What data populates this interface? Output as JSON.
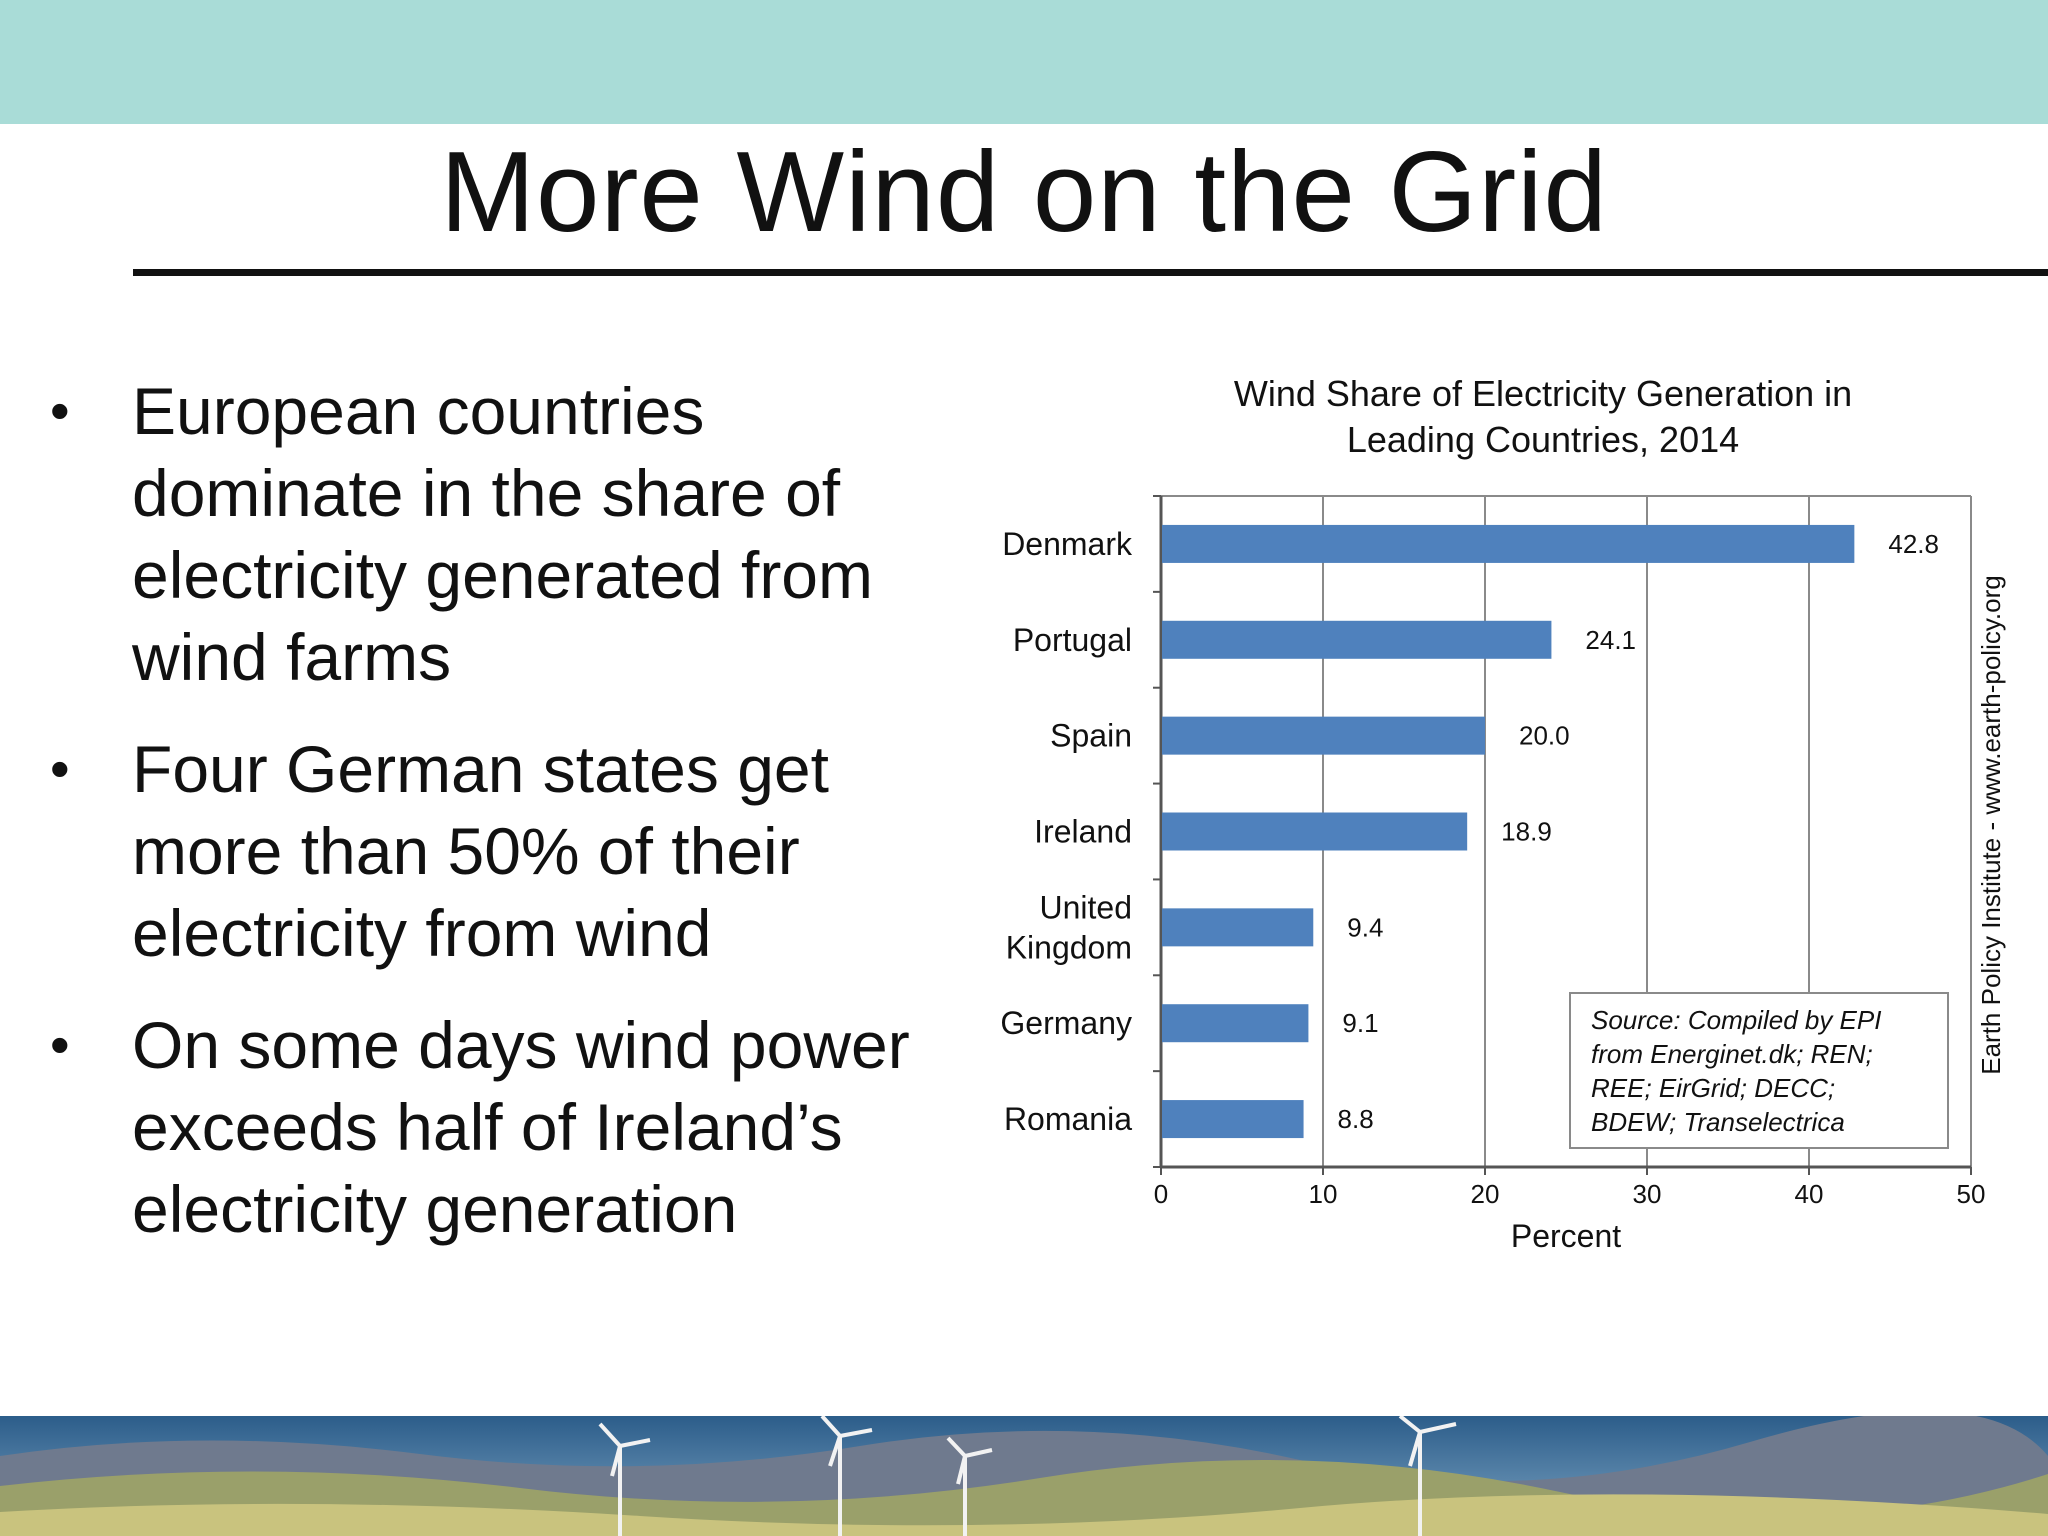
{
  "slide": {
    "title": "More Wind on the Grid",
    "bullets": [
      "European countries dominate in the share of electricity generated from wind farms",
      "Four German states get more than 50% of their electricity from wind",
      "On some days wind power exceeds half of Ireland’s electricity generation"
    ],
    "bullet_symbol": "•",
    "colors": {
      "top_band": "#a9dcd7",
      "bar": "#4f81bd"
    }
  },
  "chart_data": {
    "type": "bar",
    "orientation": "horizontal",
    "title": "Wind Share of Electricity Generation in Leading Countries, 2014",
    "title_lines": [
      "Wind Share of Electricity Generation in",
      "Leading Countries, 2014"
    ],
    "categories": [
      "Denmark",
      "Portugal",
      "Spain",
      "Ireland",
      "United Kingdom",
      "Germany",
      "Romania"
    ],
    "category_lines": [
      [
        "Denmark"
      ],
      [
        "Portugal"
      ],
      [
        "Spain"
      ],
      [
        "Ireland"
      ],
      [
        "United",
        "Kingdom"
      ],
      [
        "Germany"
      ],
      [
        "Romania"
      ]
    ],
    "values": [
      42.8,
      24.1,
      20.0,
      18.9,
      9.4,
      9.1,
      8.8
    ],
    "value_labels": [
      "42.8",
      "24.1",
      "20.0",
      "18.9",
      "9.4",
      "9.1",
      "8.8"
    ],
    "xlabel": "Percent",
    "ylabel": "",
    "xlim": [
      0,
      50
    ],
    "xticks": [
      0,
      10,
      20,
      30,
      40,
      50
    ],
    "grid": true,
    "source_lines": [
      "Source: Compiled by EPI",
      "from Energinet.dk; REN;",
      "REE; EirGrid; DECC;",
      "BDEW; Transelectrica"
    ],
    "side_credit": "Earth Policy Institute - www.earth-policy.org",
    "bar_color": "#4f81bd"
  }
}
